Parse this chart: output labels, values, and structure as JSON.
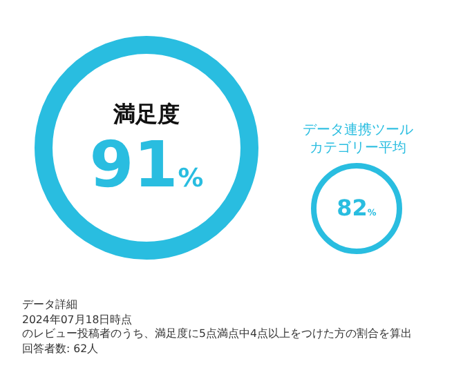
{
  "chart_data": {
    "type": "other",
    "categories": [
      "満足度",
      "データ連携ツールカテゴリー平均"
    ],
    "values": [
      91,
      82
    ],
    "value_labels": [
      "91%",
      "82%"
    ],
    "colors": [
      "#29bde0",
      "#29bde0"
    ],
    "annotations": [
      "データ詳細",
      "2024年07月18日時点",
      "のレビュー投稿者のうち、満足度に5点満点中4点以上をつけた方の割合を算出",
      "回答者数: 62人"
    ]
  }
}
